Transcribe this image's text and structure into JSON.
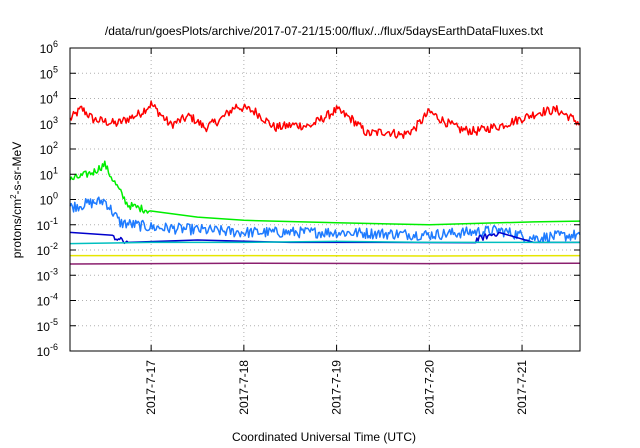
{
  "chart_data": {
    "type": "line",
    "title": "/data/run/goesPlots/archive/2017-07-21/15:00/flux/../flux/5daysEarthDataFluxes.txt",
    "xlabel": "Coordinated Universal Time (UTC)",
    "ylabel_parts": [
      "protons/cm",
      "2",
      "-s-sr-MeV"
    ],
    "y_scale": "log",
    "ylim": [
      1e-06,
      1000000.0
    ],
    "y_ticks": [
      {
        "value": 1e-06,
        "base": "10",
        "exp": "-6"
      },
      {
        "value": 1e-05,
        "base": "10",
        "exp": "-5"
      },
      {
        "value": 0.0001,
        "base": "10",
        "exp": "-4"
      },
      {
        "value": 0.001,
        "base": "10",
        "exp": "-3"
      },
      {
        "value": 0.01,
        "base": "10",
        "exp": "-2"
      },
      {
        "value": 0.1,
        "base": "10",
        "exp": "-1"
      },
      {
        "value": 1.0,
        "base": "10",
        "exp": "0"
      },
      {
        "value": 10.0,
        "base": "10",
        "exp": "1"
      },
      {
        "value": 100.0,
        "base": "10",
        "exp": "2"
      },
      {
        "value": 1000.0,
        "base": "10",
        "exp": "3"
      },
      {
        "value": 10000.0,
        "base": "10",
        "exp": "4"
      },
      {
        "value": 100000.0,
        "base": "10",
        "exp": "5"
      },
      {
        "value": 1000000.0,
        "base": "10",
        "exp": "6"
      }
    ],
    "xlim": [
      "2017-07-16 03:00",
      "2017-07-21 15:00"
    ],
    "x_ticks": [
      {
        "value": "2017-07-17 00:00",
        "label": "2017-7-17"
      },
      {
        "value": "2017-07-18 00:00",
        "label": "2017-7-18"
      },
      {
        "value": "2017-07-19 00:00",
        "label": "2017-7-19"
      },
      {
        "value": "2017-07-20 00:00",
        "label": "2017-7-20"
      },
      {
        "value": "2017-07-21 00:00",
        "label": "2017-7-21"
      }
    ],
    "grid": true,
    "legend": "none",
    "series": [
      {
        "color": "#ff0000",
        "noise": 0.18,
        "points": [
          [
            "2017-07-16 03:00",
            1500
          ],
          [
            "2017-07-16 06:00",
            4000
          ],
          [
            "2017-07-16 09:00",
            1500
          ],
          [
            "2017-07-16 15:00",
            1000
          ],
          [
            "2017-07-16 21:00",
            2500
          ],
          [
            "2017-07-17 00:00",
            6000
          ],
          [
            "2017-07-17 05:00",
            900
          ],
          [
            "2017-07-17 10:00",
            2000
          ],
          [
            "2017-07-17 14:00",
            700
          ],
          [
            "2017-07-17 18:00",
            1500
          ],
          [
            "2017-07-17 22:00",
            5000
          ],
          [
            "2017-07-18 03:00",
            3000
          ],
          [
            "2017-07-18 08:00",
            700
          ],
          [
            "2017-07-18 13:00",
            900
          ],
          [
            "2017-07-18 17:00",
            800
          ],
          [
            "2017-07-18 20:00",
            1500
          ],
          [
            "2017-07-19 00:00",
            3500
          ],
          [
            "2017-07-19 04:00",
            1500
          ],
          [
            "2017-07-19 08:00",
            400
          ],
          [
            "2017-07-19 13:00",
            500
          ],
          [
            "2017-07-19 17:00",
            350
          ],
          [
            "2017-07-19 20:00",
            600
          ],
          [
            "2017-07-20 00:00",
            3000
          ],
          [
            "2017-07-20 04:00",
            1200
          ],
          [
            "2017-07-20 08:00",
            600
          ],
          [
            "2017-07-20 12:00",
            500
          ],
          [
            "2017-07-20 16:00",
            700
          ],
          [
            "2017-07-20 18:00",
            800
          ],
          [
            "2017-07-21 05:00",
            3000
          ],
          [
            "2017-07-21 09:00",
            3500
          ],
          [
            "2017-07-21 12:00",
            2000
          ],
          [
            "2017-07-21 15:00",
            1000
          ]
        ]
      },
      {
        "color": "#00ee00",
        "noise": 0.15,
        "points": [
          [
            "2017-07-16 03:00",
            6
          ],
          [
            "2017-07-16 09:00",
            12
          ],
          [
            "2017-07-16 12:00",
            25
          ],
          [
            "2017-07-16 13:00",
            12
          ],
          [
            "2017-07-16 18:00",
            0.6
          ],
          [
            "2017-07-17 00:00",
            0.35
          ],
          [
            "2017-07-17 12:00",
            0.2
          ],
          [
            "2017-07-18 00:00",
            0.15
          ],
          [
            "2017-07-19 00:00",
            0.12
          ],
          [
            "2017-07-20 00:00",
            0.1
          ],
          [
            "2017-07-20 18:00",
            0.12
          ],
          [
            "2017-07-21 03:00",
            0.13
          ],
          [
            "2017-07-21 15:00",
            0.14
          ]
        ]
      },
      {
        "color": "#1e7bff",
        "noise": 0.22,
        "points": [
          [
            "2017-07-16 03:00",
            0.5
          ],
          [
            "2017-07-16 08:00",
            0.7
          ],
          [
            "2017-07-16 12:00",
            0.9
          ],
          [
            "2017-07-16 16:00",
            0.12
          ],
          [
            "2017-07-17 00:00",
            0.08
          ],
          [
            "2017-07-18 00:00",
            0.05
          ],
          [
            "2017-07-19 00:00",
            0.05
          ],
          [
            "2017-07-20 00:00",
            0.04
          ],
          [
            "2017-07-20 18:00",
            0.06
          ],
          [
            "2017-07-21 03:00",
            0.03
          ],
          [
            "2017-07-21 15:00",
            0.04
          ]
        ]
      },
      {
        "color": "#0000cc",
        "noise": 0.12,
        "points": [
          [
            "2017-07-16 03:00",
            0.05
          ],
          [
            "2017-07-16 14:00",
            0.03
          ],
          [
            "2017-07-16 18:00",
            0.02
          ],
          [
            "2017-07-17 12:00",
            0.025
          ],
          [
            "2017-07-18 12:00",
            0.02
          ],
          [
            "2017-07-19 12:00",
            0.02
          ],
          [
            "2017-07-20 12:00",
            0.025
          ],
          [
            "2017-07-20 18:00",
            0.05
          ],
          [
            "2017-07-21 03:00",
            0.02
          ],
          [
            "2017-07-21 15:00",
            0.02
          ]
        ]
      },
      {
        "color": "#00bfbf",
        "noise": 0.1,
        "points": [
          [
            "2017-07-16 03:00",
            0.018
          ],
          [
            "2017-07-17 00:00",
            0.02
          ],
          [
            "2017-07-18 00:00",
            0.02
          ],
          [
            "2017-07-19 00:00",
            0.022
          ],
          [
            "2017-07-20 00:00",
            0.02
          ],
          [
            "2017-07-21 00:00",
            0.02
          ],
          [
            "2017-07-21 15:00",
            0.02
          ]
        ]
      },
      {
        "color": "#e6e600",
        "noise": 0.06,
        "points": [
          [
            "2017-07-16 03:00",
            0.006
          ],
          [
            "2017-07-18 00:00",
            0.006
          ],
          [
            "2017-07-20 00:00",
            0.0058
          ],
          [
            "2017-07-21 15:00",
            0.006
          ]
        ]
      },
      {
        "color": "#8b1f6e",
        "noise": 0.07,
        "points": [
          [
            "2017-07-16 03:00",
            0.0028
          ],
          [
            "2017-07-18 00:00",
            0.003
          ],
          [
            "2017-07-20 00:00",
            0.0029
          ],
          [
            "2017-07-21 15:00",
            0.003
          ]
        ]
      }
    ]
  }
}
